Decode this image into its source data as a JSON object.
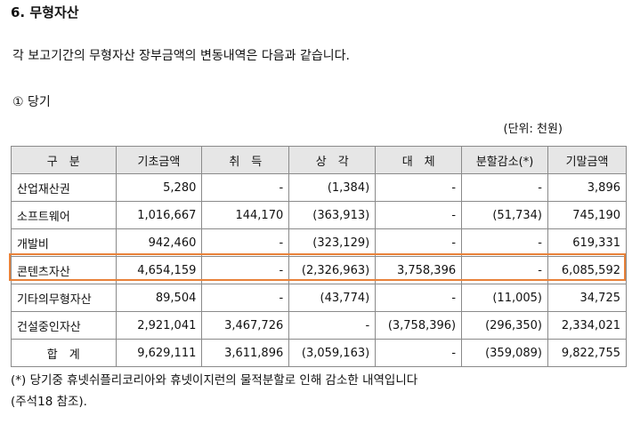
{
  "section_title": "6. 무형자산",
  "description": "각 보고기간의 무형자산 장부금액의 변동내역은 다음과 같습니다.",
  "subheading": "① 당기",
  "unit_note": "(단위: 천원)",
  "highlight_color": "#e8823a",
  "table": {
    "headers": [
      "구　분",
      "기초금액",
      "취　득",
      "상　각",
      "대　체",
      "분할감소(*)",
      "기말금액"
    ],
    "rows": [
      [
        "산업재산권",
        "5,280",
        "-",
        "(1,384)",
        "-",
        "-",
        "3,896"
      ],
      [
        "소프트웨어",
        "1,016,667",
        "144,170",
        "(363,913)",
        "-",
        "(51,734)",
        "745,190"
      ],
      [
        "개발비",
        "942,460",
        "-",
        "(323,129)",
        "-",
        "-",
        "619,331"
      ],
      [
        "콘텐츠자산",
        "4,654,159",
        "-",
        "(2,326,963)",
        "3,758,396",
        "-",
        "6,085,592"
      ],
      [
        "기타의무형자산",
        "89,504",
        "-",
        "(43,774)",
        "-",
        "(11,005)",
        "34,725"
      ],
      [
        "건설중인자산",
        "2,921,041",
        "3,467,726",
        "-",
        "(3,758,396)",
        "(296,350)",
        "2,334,021"
      ],
      [
        "합　계",
        "9,629,111",
        "3,611,896",
        "(3,059,163)",
        "-",
        "(359,089)",
        "9,822,755"
      ]
    ]
  },
  "footnote": {
    "line1": "(*) 당기중 휴넷쉬플리코리아와 휴넷이지런의 물적분할로 인해 감소한 내역입니다",
    "line2": "(주석18 참조)."
  }
}
